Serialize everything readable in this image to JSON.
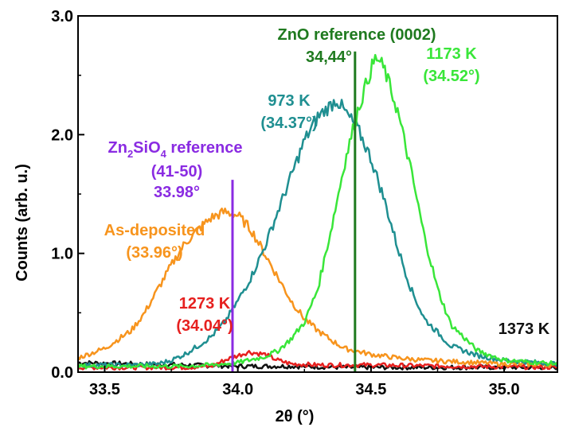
{
  "chart_data": {
    "type": "line",
    "title": "",
    "xlabel": "2θ (°)",
    "ylabel": "Counts (arb. u.)",
    "xlim": [
      33.4,
      35.2
    ],
    "ylim": [
      0.0,
      3.0
    ],
    "x_ticks": [
      33.5,
      34.0,
      34.5,
      35.0
    ],
    "x_tick_labels": [
      "33.5",
      "34.0",
      "34.5",
      "35.0"
    ],
    "y_ticks": [
      0.0,
      1.0,
      2.0,
      3.0
    ],
    "y_tick_labels": [
      "0.0",
      "1.0",
      "2.0",
      "3.0"
    ],
    "grid": false,
    "legend": "none",
    "series": [
      {
        "name": "As-deposited",
        "color": "#f7941d",
        "x": [
          33.4,
          33.5,
          33.6,
          33.65,
          33.7,
          33.75,
          33.8,
          33.85,
          33.9,
          33.95,
          34.0,
          34.05,
          34.1,
          34.15,
          34.2,
          34.25,
          34.3,
          34.35,
          34.4,
          34.5,
          34.6,
          34.7,
          34.8,
          34.9,
          35.0,
          35.2
        ],
        "y": [
          0.12,
          0.2,
          0.35,
          0.5,
          0.7,
          0.9,
          1.08,
          1.2,
          1.3,
          1.35,
          1.32,
          1.2,
          1.0,
          0.8,
          0.6,
          0.45,
          0.35,
          0.27,
          0.2,
          0.15,
          0.12,
          0.1,
          0.09,
          0.08,
          0.07,
          0.06
        ]
      },
      {
        "name": "973 K",
        "color": "#1f8f91",
        "x": [
          33.4,
          33.6,
          33.7,
          33.75,
          33.8,
          33.85,
          33.9,
          33.95,
          34.0,
          34.05,
          34.1,
          34.15,
          34.2,
          34.25,
          34.3,
          34.35,
          34.37,
          34.4,
          34.45,
          34.5,
          34.55,
          34.6,
          34.65,
          34.7,
          34.8,
          34.9,
          35.0,
          35.2
        ],
        "y": [
          0.06,
          0.06,
          0.07,
          0.1,
          0.15,
          0.22,
          0.3,
          0.42,
          0.6,
          0.8,
          1.05,
          1.35,
          1.65,
          1.95,
          2.15,
          2.25,
          2.3,
          2.2,
          2.05,
          1.8,
          1.45,
          1.05,
          0.7,
          0.45,
          0.22,
          0.14,
          0.1,
          0.07
        ]
      },
      {
        "name": "1173 K",
        "color": "#39e639",
        "x": [
          33.4,
          33.8,
          33.9,
          34.0,
          34.1,
          34.15,
          34.2,
          34.25,
          34.3,
          34.35,
          34.4,
          34.45,
          34.5,
          34.52,
          34.55,
          34.6,
          34.65,
          34.7,
          34.75,
          34.8,
          34.9,
          35.0,
          35.2
        ],
        "y": [
          0.05,
          0.05,
          0.06,
          0.08,
          0.13,
          0.18,
          0.28,
          0.42,
          0.7,
          1.2,
          1.75,
          2.2,
          2.55,
          2.65,
          2.55,
          2.2,
          1.7,
          1.15,
          0.7,
          0.4,
          0.18,
          0.1,
          0.07
        ]
      },
      {
        "name": "1273 K",
        "color": "#e6201f",
        "x": [
          33.4,
          33.8,
          33.9,
          33.95,
          34.0,
          34.04,
          34.1,
          34.15,
          34.2,
          34.3,
          34.5,
          34.8,
          35.2
        ],
        "y": [
          0.04,
          0.04,
          0.05,
          0.1,
          0.14,
          0.17,
          0.15,
          0.1,
          0.07,
          0.06,
          0.06,
          0.05,
          0.04
        ]
      },
      {
        "name": "1373 K",
        "color": "#111111",
        "x": [
          33.4,
          33.6,
          33.8,
          34.0,
          34.2,
          34.4,
          34.6,
          34.8,
          35.0,
          35.2
        ],
        "y": [
          0.08,
          0.07,
          0.06,
          0.05,
          0.05,
          0.04,
          0.04,
          0.04,
          0.04,
          0.04
        ]
      }
    ],
    "reference_lines": [
      {
        "x": 33.98,
        "y_top": 1.62,
        "color": "#8a2be2"
      },
      {
        "x": 34.44,
        "y_top": 2.7,
        "color": "#1f7a1f"
      }
    ],
    "annotations": [
      {
        "text": "ZnO reference (0002)",
        "color": "#1f7a1f"
      },
      {
        "text": "34,44°",
        "color": "#1f7a1f"
      },
      {
        "text": "1173 K",
        "color": "#39e639"
      },
      {
        "text": "(34.52°)",
        "color": "#39e639"
      },
      {
        "text": "973 K",
        "color": "#1f8f91"
      },
      {
        "text": "(34.37°)",
        "color": "#1f8f91"
      },
      {
        "text_main": "Zn",
        "sub1": "2",
        "text_mid": "SiO",
        "sub2": "4",
        "text_end": " reference",
        "color": "#8a2be2"
      },
      {
        "text": "(41-50)",
        "color": "#8a2be2"
      },
      {
        "text": "33.98°",
        "color": "#8a2be2"
      },
      {
        "text": "As-deposited",
        "color": "#f7941d"
      },
      {
        "text": "(33.96°)",
        "color": "#f7941d"
      },
      {
        "text": "1273 K",
        "color": "#e6201f"
      },
      {
        "text": "(34.04°)",
        "color": "#e6201f"
      },
      {
        "text": "1373 K",
        "color": "#111111"
      }
    ]
  }
}
